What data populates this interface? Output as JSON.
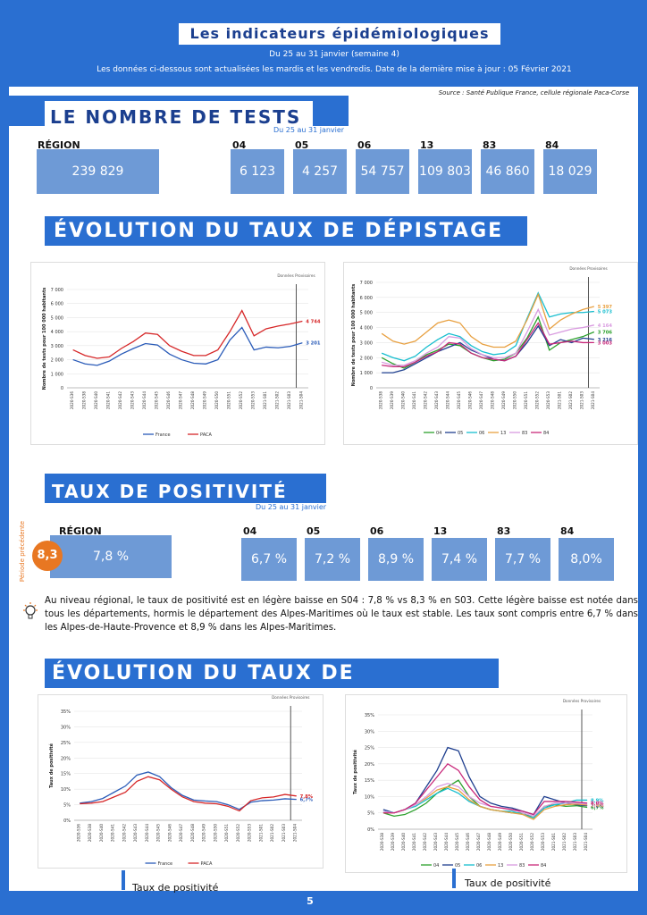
{
  "header": {
    "title": "Les indicateurs épidémiologiques",
    "period": "Du 25 au 31 janvier (semaine 4)",
    "update_note": "Les données ci-dessous sont actualisées les mardis et les vendredis. Date de la dernière mise à jour : 05 Février 2021"
  },
  "source": "Source : Santé Publique France, cellule régionale Paca-Corse",
  "tests": {
    "title": "LE NOMBRE DE TESTS",
    "period": "Du 25 au 31 janvier",
    "region_label": "RÉGION",
    "region_value": "239 829",
    "departments": [
      {
        "code": "04",
        "value": "6 123"
      },
      {
        "code": "05",
        "value": "4 257"
      },
      {
        "code": "06",
        "value": "54 757"
      },
      {
        "code": "13",
        "value": "109 803"
      },
      {
        "code": "83",
        "value": "46 860"
      },
      {
        "code": "84",
        "value": "18 029"
      }
    ]
  },
  "screening": {
    "title": "ÉVOLUTION DU TAUX DE DÉPISTAGE"
  },
  "positivity": {
    "title": "TAUX DE POSITIVITÉ",
    "period": "Du 25  au 31 janvier",
    "region_label": "RÉGION",
    "previous_label": "Période précédente",
    "previous_value": "8,3",
    "region_value": "7,8 %",
    "departments": [
      {
        "code": "04",
        "value": "6,7 %"
      },
      {
        "code": "05",
        "value": "7,2 %"
      },
      {
        "code": "06",
        "value": "8,9 %"
      },
      {
        "code": "13",
        "value": "7,4 %"
      },
      {
        "code": "83",
        "value": "7,7 %"
      },
      {
        "code": "84",
        "value": "8,0%"
      }
    ],
    "comment": "Au niveau régional, le taux de positivité est en légère baisse en S04 : 7,8 % vs 8,3 % en S03. Cette légère baisse est notée dans tous les départements, hormis le département des Alpes-Maritimes où le taux est stable. Les taux sont compris entre 6,7 % dans les Alpes-de-Haute-Provence et 8,9 % dans les Alpes-Maritimes."
  },
  "positivity_evolution": {
    "title": "ÉVOLUTION DU TAUX DE POSITIVITÉ",
    "caption_left": "Taux de positivité",
    "caption_right": "Taux de positivité"
  },
  "page_number": "5",
  "colors": {
    "primary": "#2a6fd1",
    "box": "#6e9ad6",
    "accent": "#e87722"
  },
  "chart_data": [
    {
      "type": "line",
      "ylabel": "Nombre de tests pour 100 000 habitants",
      "ylim": [
        0,
        7000
      ],
      "yticks": [
        "0",
        "1 000",
        "2 000",
        "3 000",
        "4 000",
        "5 000",
        "6 000",
        "7 000"
      ],
      "annotation": "Données Provisoires",
      "categories": [
        "2020-S36",
        "2020-S38",
        "2020-S40",
        "2020-S41",
        "2020-S42",
        "2020-S43",
        "2020-S44",
        "2020-S45",
        "2020-S46",
        "2020-S47",
        "2020-S48",
        "2020-S49",
        "2020-S50",
        "2020-S51",
        "2020-S52",
        "2020-S53",
        "2021-S01",
        "2021-S02",
        "2021-S03",
        "2021-S04"
      ],
      "series": [
        {
          "name": "France",
          "color": "#2a5bb8",
          "end_label": "3 201",
          "values": [
            2000,
            1700,
            1600,
            1900,
            2400,
            2800,
            3150,
            3050,
            2400,
            2000,
            1750,
            1700,
            2000,
            3400,
            4300,
            2700,
            2900,
            2850,
            2950,
            3201
          ]
        },
        {
          "name": "PACA",
          "color": "#d62728",
          "end_label": "4 744",
          "values": [
            2700,
            2300,
            2100,
            2200,
            2800,
            3300,
            3900,
            3800,
            3000,
            2600,
            2300,
            2300,
            2700,
            4000,
            5500,
            3700,
            4200,
            4400,
            4550,
            4744
          ]
        }
      ]
    },
    {
      "type": "line",
      "ylabel": "Nombre de tests pour 100 000 habitants",
      "ylim": [
        0,
        7000
      ],
      "yticks": [
        "0",
        "1 000",
        "2 000",
        "3 000",
        "4 000",
        "5 000",
        "6 000",
        "7 000"
      ],
      "annotation": "Données Provisoires",
      "categories": [
        "2020-S38",
        "2020-S39",
        "2020-S40",
        "2020-S41",
        "2020-S42",
        "2020-S43",
        "2020-S44",
        "2020-S45",
        "2020-S46",
        "2020-S47",
        "2020-S48",
        "2020-S49",
        "2020-S50",
        "2020-S51",
        "2020-S52",
        "2020-S53",
        "2021-S01",
        "2021-S02",
        "2021-S03",
        "2021-S04"
      ],
      "series": [
        {
          "name": "04",
          "color": "#2ca02c",
          "end_label": "3 706",
          "values": [
            2000,
            1600,
            1300,
            1700,
            2200,
            2500,
            2900,
            2800,
            2300,
            2000,
            1800,
            1900,
            2300,
            3300,
            4700,
            2500,
            3000,
            3200,
            3400,
            3706
          ]
        },
        {
          "name": "05",
          "color": "#1f3f8f",
          "end_label": "3 216",
          "values": [
            1000,
            1000,
            1200,
            1600,
            2000,
            2400,
            2700,
            3000,
            2500,
            2200,
            1900,
            1800,
            2100,
            3000,
            4100,
            2800,
            3200,
            3000,
            3300,
            3216
          ]
        },
        {
          "name": "06",
          "color": "#17becf",
          "end_label": "5 073",
          "values": [
            2300,
            2000,
            1800,
            2100,
            2700,
            3200,
            3600,
            3400,
            2800,
            2400,
            2200,
            2300,
            2800,
            4600,
            6300,
            4700,
            4900,
            5000,
            5000,
            5073
          ]
        },
        {
          "name": "13",
          "color": "#e8a040",
          "end_label": "5 397",
          "values": [
            3600,
            3100,
            2900,
            3100,
            3700,
            4300,
            4500,
            4300,
            3400,
            2900,
            2700,
            2700,
            3100,
            4500,
            6200,
            3900,
            4500,
            4900,
            5200,
            5397
          ]
        },
        {
          "name": "83",
          "color": "#d99be0",
          "end_label": "4 164",
          "values": [
            1700,
            1500,
            1500,
            1800,
            2300,
            2700,
            3400,
            3300,
            2600,
            2200,
            2000,
            2000,
            2300,
            3700,
            5200,
            3500,
            3700,
            3900,
            4000,
            4164
          ]
        },
        {
          "name": "84",
          "color": "#c8287a",
          "end_label": "3 003",
          "values": [
            1500,
            1400,
            1400,
            1700,
            2100,
            2400,
            3000,
            2900,
            2300,
            2000,
            1900,
            1800,
            2100,
            3200,
            4300,
            2900,
            3000,
            3100,
            3000,
            3003
          ]
        }
      ]
    },
    {
      "type": "line",
      "ylabel": "Taux de positivité",
      "ylim": [
        0,
        35
      ],
      "yticks": [
        "0%",
        "5%",
        "10%",
        "15%",
        "20%",
        "25%",
        "30%",
        "35%"
      ],
      "annotation": "Données Provisoires",
      "categories": [
        "2020-S36",
        "2020-S38",
        "2020-S40",
        "2020-S41",
        "2020-S42",
        "2020-S43",
        "2020-S44",
        "2020-S45",
        "2020-S46",
        "2020-S47",
        "2020-S48",
        "2020-S49",
        "2020-S50",
        "2020-S51",
        "2020-S52",
        "2020-S53",
        "2021-S01",
        "2021-S02",
        "2021-S03",
        "2021-S04"
      ],
      "series": [
        {
          "name": "France",
          "color": "#2a5bb8",
          "end_label": "6,7%",
          "values": [
            5.5,
            6,
            7,
            9,
            11,
            14.5,
            15.5,
            14,
            10.5,
            8,
            6.5,
            6.2,
            6,
            5,
            3.5,
            5.8,
            6.3,
            6.5,
            6.9,
            6.7
          ]
        },
        {
          "name": "PACA",
          "color": "#d62728",
          "end_label": "7,8%",
          "values": [
            5.3,
            5.5,
            6,
            7.5,
            9,
            12.5,
            14,
            13,
            10,
            7.5,
            6,
            5.5,
            5.3,
            4.5,
            3,
            6.3,
            7.2,
            7.5,
            8.3,
            7.8
          ]
        }
      ]
    },
    {
      "type": "line",
      "ylabel": "Taux de positivité",
      "ylim": [
        0,
        35
      ],
      "yticks": [
        "0%",
        "5%",
        "10%",
        "15%",
        "20%",
        "25%",
        "30%",
        "35%"
      ],
      "annotation": "Données Provisoires",
      "categories": [
        "2020-S38",
        "2020-S39",
        "2020-S40",
        "2020-S41",
        "2020-S42",
        "2020-S43",
        "2020-S44",
        "2020-S45",
        "2020-S46",
        "2020-S47",
        "2020-S48",
        "2020-S49",
        "2020-S50",
        "2020-S51",
        "2020-S52",
        "2020-S53",
        "2021-S01",
        "2021-S02",
        "2021-S03",
        "2021-S04"
      ],
      "series": [
        {
          "name": "04",
          "color": "#2ca02c",
          "end_label": "6,7%",
          "values": [
            5,
            4,
            4.5,
            6,
            8,
            11,
            13,
            15,
            10,
            7,
            6,
            5.5,
            5,
            5,
            3.5,
            7,
            7.5,
            7,
            7.2,
            6.7
          ]
        },
        {
          "name": "05",
          "color": "#1f3f8f",
          "end_label": "7,2%",
          "values": [
            6,
            5,
            6,
            8,
            13,
            18,
            25,
            24,
            16,
            10,
            8,
            7,
            6.5,
            5.5,
            4.5,
            10,
            9,
            8,
            7.5,
            7.2
          ]
        },
        {
          "name": "06",
          "color": "#17becf",
          "end_label": "8,9%",
          "values": [
            5.5,
            5,
            6,
            7,
            9,
            11,
            12.5,
            11,
            8.5,
            7,
            6,
            5.5,
            5.5,
            4.5,
            3.5,
            6.5,
            7.5,
            8,
            8.9,
            8.9
          ]
        },
        {
          "name": "13",
          "color": "#e8a040",
          "end_label": "7,4%",
          "values": [
            5,
            5,
            6,
            7.5,
            9.5,
            12,
            13,
            12,
            9,
            7,
            6,
            5.5,
            5,
            4.5,
            3,
            6,
            7,
            7.5,
            7.7,
            7.4
          ]
        },
        {
          "name": "83",
          "color": "#d99be0",
          "end_label": "7,7%",
          "values": [
            5.5,
            5,
            6,
            7.5,
            10,
            13,
            14,
            13,
            10,
            8,
            7,
            6.5,
            6,
            5,
            4,
            7,
            8,
            8,
            8,
            7.7
          ]
        },
        {
          "name": "84",
          "color": "#c8287a",
          "end_label": "8,0%",
          "values": [
            5,
            5,
            6,
            8,
            12,
            16,
            20,
            18,
            13,
            9,
            7,
            6.5,
            6,
            5.5,
            4.5,
            8.5,
            8.5,
            8.5,
            8.3,
            8.0
          ]
        }
      ]
    }
  ]
}
